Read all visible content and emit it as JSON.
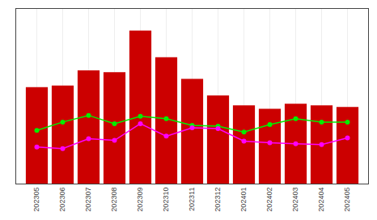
{
  "chart_data": {
    "type": "bar",
    "categories": [
      "202305",
      "202306",
      "202307",
      "202308",
      "202309",
      "202310",
      "202311",
      "202312",
      "202401",
      "202402",
      "202403",
      "202404",
      "202405"
    ],
    "series": [
      {
        "type": "bar",
        "color": "#cc0000",
        "values": [
          5.8,
          5.9,
          6.8,
          6.7,
          9.2,
          7.6,
          6.3,
          5.3,
          4.7,
          4.5,
          4.8,
          4.7,
          4.6
        ]
      },
      {
        "type": "line",
        "color": "#00ee00",
        "marker": "circle",
        "values": [
          3.2,
          3.7,
          4.1,
          3.6,
          4.05,
          3.9,
          3.5,
          3.45,
          3.1,
          3.55,
          3.9,
          3.7,
          3.7
        ]
      },
      {
        "type": "line",
        "color": "#ff00ff",
        "marker": "circle",
        "values": [
          2.2,
          2.1,
          2.7,
          2.6,
          3.6,
          2.85,
          3.35,
          3.3,
          2.55,
          2.45,
          2.4,
          2.35,
          2.75
        ]
      }
    ],
    "ylim": [
      0,
      10.5
    ],
    "yticks": [],
    "grid": true,
    "tick_labels": "x"
  }
}
